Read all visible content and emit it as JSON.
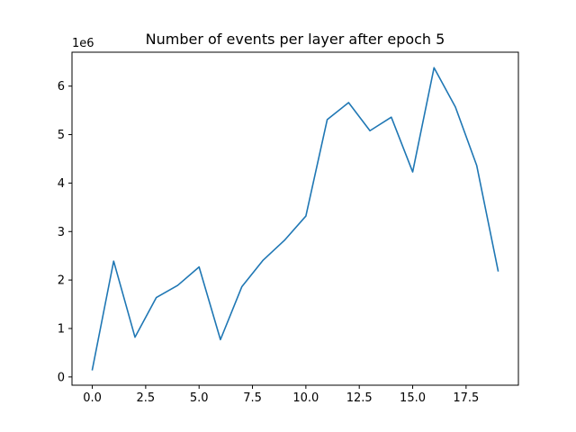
{
  "chart_data": {
    "type": "line",
    "title": "Number of events per layer after epoch 5",
    "xlabel": "",
    "ylabel": "",
    "y_offset_label": "1e6",
    "x": [
      0,
      1,
      2,
      3,
      4,
      5,
      6,
      7,
      8,
      9,
      10,
      11,
      12,
      13,
      14,
      15,
      16,
      17,
      18,
      19
    ],
    "series": [
      {
        "values": [
          0.15,
          2.39,
          0.82,
          1.64,
          1.89,
          2.27,
          0.77,
          1.86,
          2.41,
          2.82,
          3.32,
          5.31,
          5.66,
          5.08,
          5.36,
          4.23,
          6.38,
          5.57,
          4.36,
          2.19
        ],
        "color": "#1f77b4"
      }
    ],
    "xlim": [
      -0.95,
      19.95
    ],
    "ylim": [
      -0.17,
      6.7
    ],
    "xticks": [
      0.0,
      2.5,
      5.0,
      7.5,
      10.0,
      12.5,
      15.0,
      17.5
    ],
    "xtick_labels": [
      "0.0",
      "2.5",
      "5.0",
      "7.5",
      "10.0",
      "12.5",
      "15.0",
      "17.5"
    ],
    "yticks": [
      0,
      1,
      2,
      3,
      4,
      5,
      6
    ],
    "ytick_labels": [
      "0",
      "1",
      "2",
      "3",
      "4",
      "5",
      "6"
    ],
    "grid": false
  }
}
